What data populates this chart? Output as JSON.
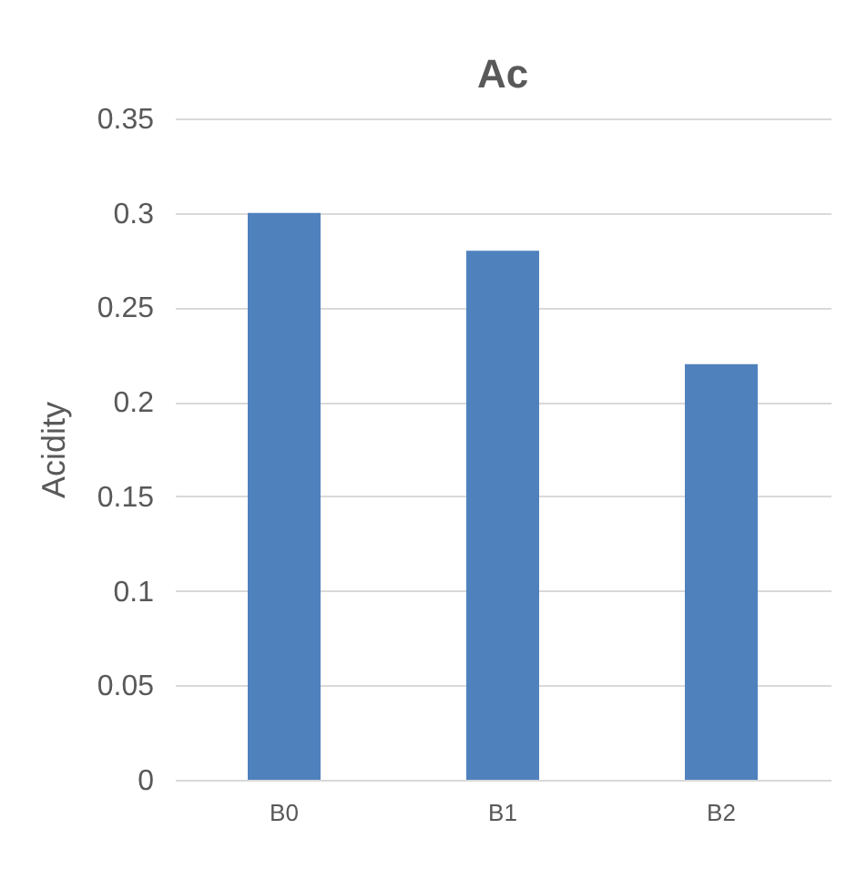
{
  "chart_data": {
    "type": "bar",
    "title": "Ac",
    "ylabel": "Acidity",
    "categories": [
      "B0",
      "B1",
      "B2"
    ],
    "values": [
      0.3,
      0.28,
      0.22
    ],
    "color": "#4f81bd",
    "ylim": [
      0,
      0.35
    ],
    "yticks": [
      0,
      0.05,
      0.1,
      0.15,
      0.2,
      0.25,
      0.3,
      0.35
    ],
    "grid": "y"
  }
}
